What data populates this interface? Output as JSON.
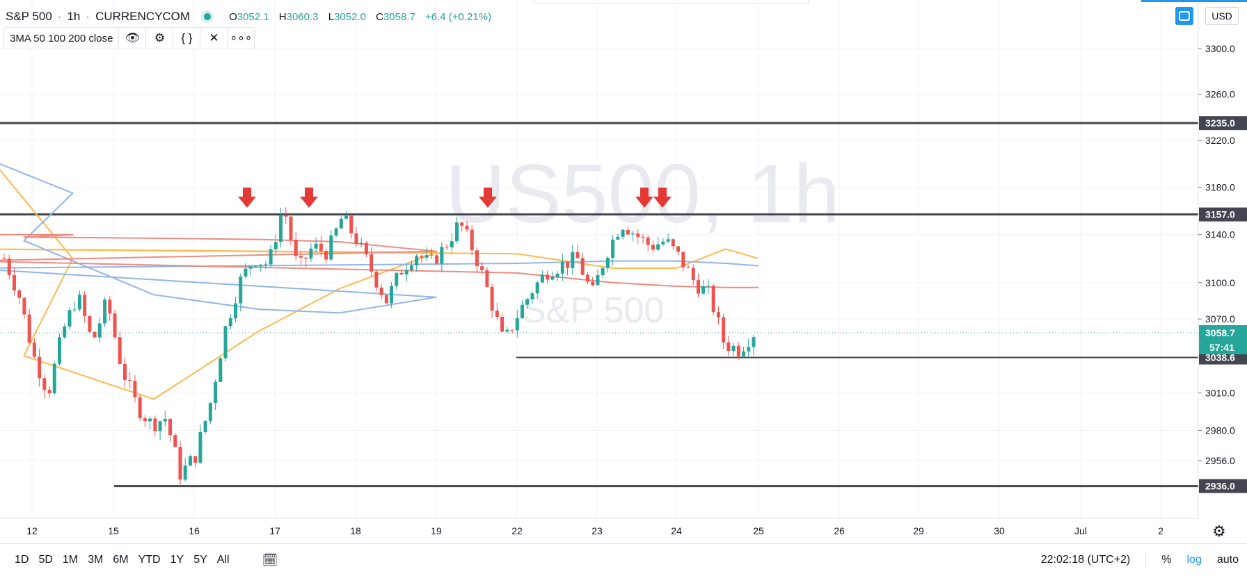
{
  "header": {
    "symbol": "S&P 500",
    "interval": "1h",
    "source": "CURRENCYCOM",
    "open_label": "O",
    "open": "3052.1",
    "high_label": "H",
    "high": "3060.3",
    "low_label": "L",
    "low": "3052.0",
    "close_label": "C",
    "close": "3058.7",
    "change": "+6.4 (+0.21%)"
  },
  "indicator": {
    "label": "3MA 50 100 200 close"
  },
  "currency": "USD",
  "watermark": {
    "main": "US500, 1h",
    "sub": "S&P 500"
  },
  "bottom": {
    "ranges": [
      "1D",
      "5D",
      "1M",
      "3M",
      "6M",
      "YTD",
      "1Y",
      "5Y",
      "All"
    ],
    "clock": "22:02:18 (UTC+2)",
    "pct": "%",
    "log": "log",
    "auto": "auto"
  },
  "colors": {
    "up": "#26a69a",
    "down": "#ef5350",
    "ma50": "#ffb74d",
    "ma100": "#8fb4ec",
    "ma200": "#ef8a80",
    "level": "#434651",
    "arrow": "#e53935",
    "current": "#26a69a"
  },
  "chart_data": {
    "type": "candlestick",
    "xlabel": "",
    "ylabel": "",
    "ylim": [
      2905,
      3336
    ],
    "grid": true,
    "x_tick_labels": [
      "12",
      "15",
      "16",
      "17",
      "18",
      "19",
      "22",
      "23",
      "24",
      "25",
      "26",
      "29",
      "30",
      "Jul",
      "2"
    ],
    "y_ticks": [
      3300.0,
      3260.0,
      3220.0,
      3180.0,
      3140.0,
      3100.0,
      3070.0,
      3010.0,
      2980.0,
      2956.0
    ],
    "horizontal_levels": [
      3235.0,
      3157.0,
      3038.6,
      2936.0
    ],
    "current_price": {
      "value": 3058.7,
      "countdown": "57:41"
    },
    "resistance_arrows": 5,
    "ohlc_keypoints": [
      {
        "x": "12",
        "price": 3120
      },
      {
        "x": "12",
        "price": 3040
      },
      {
        "x": "12",
        "price": 3080
      },
      {
        "x": "15",
        "price": 3020
      },
      {
        "x": "15",
        "price": 2940
      },
      {
        "x": "16",
        "price": 3060
      },
      {
        "x": "16",
        "price": 3120
      },
      {
        "x": "17",
        "price": 3165
      },
      {
        "x": "17",
        "price": 3120
      },
      {
        "x": "17",
        "price": 3155
      },
      {
        "x": "18",
        "price": 3080
      },
      {
        "x": "19",
        "price": 3150
      },
      {
        "x": "22",
        "price": 3045
      },
      {
        "x": "23",
        "price": 3120
      },
      {
        "x": "24",
        "price": 3155
      },
      {
        "x": "24",
        "price": 3130
      },
      {
        "x": "25",
        "price": 3040
      },
      {
        "x": "25",
        "price": 3058.7
      }
    ],
    "series": [
      {
        "name": "MA 50",
        "values": [
          3195,
          3120,
          3040,
          3005,
          3060,
          3095,
          3125,
          3128,
          3124,
          3112,
          3112,
          3128,
          3120
        ]
      },
      {
        "name": "MA 100",
        "values": [
          3200,
          3175,
          3135,
          3090,
          3078,
          3075,
          3088,
          3112,
          3116,
          3118,
          3118,
          3116,
          3114
        ]
      },
      {
        "name": "MA 200",
        "values": [
          3140,
          3140,
          3138,
          3137,
          3136,
          3134,
          3126,
          3118,
          3108,
          3100,
          3097,
          3096,
          3096
        ]
      }
    ],
    "ma_x_dates": [
      "11.6",
      "12.5",
      "13.9",
      "15.5",
      "16.8",
      "17.8",
      "19",
      "21.2",
      "22",
      "23.2",
      "24",
      "24.6",
      "25"
    ]
  }
}
